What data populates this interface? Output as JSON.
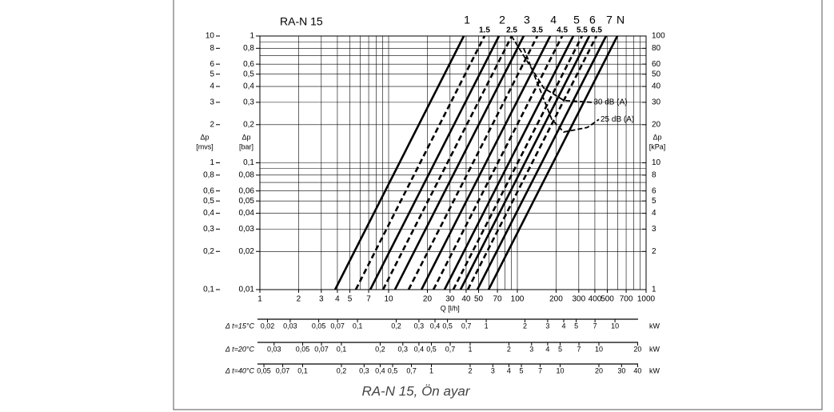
{
  "chart_data": {
    "type": "line",
    "title": "RA-N 15",
    "caption": "RA-N 15, Ön ayar",
    "x_label": "Q [l/h]",
    "x_log": true,
    "y_log": true,
    "grid": true,
    "xlim": [
      1,
      1000
    ],
    "xticks": [
      1,
      2,
      3,
      4,
      5,
      7,
      10,
      20,
      30,
      40,
      50,
      70,
      100,
      200,
      300,
      400,
      500,
      700,
      1000
    ],
    "xgrid": [
      1,
      2,
      3,
      4,
      5,
      6,
      7,
      8,
      9,
      10,
      20,
      30,
      40,
      50,
      60,
      70,
      80,
      90,
      100,
      200,
      300,
      400,
      500,
      600,
      700,
      800,
      900,
      1000
    ],
    "y_label": {
      "symbol": "Δp",
      "unit": "[bar]"
    },
    "ylim": [
      0.01,
      1
    ],
    "yticks": [
      1,
      {
        "value": 0.8,
        "label": "0,8"
      },
      {
        "value": 0.6,
        "label": "0,6"
      },
      {
        "value": 0.5,
        "label": "0,5"
      },
      {
        "value": 0.4,
        "label": "0,4"
      },
      {
        "value": 0.3,
        "label": "0,3"
      },
      {
        "value": 0.2,
        "label": "0,2"
      },
      {
        "value": 0.1,
        "label": "0,1"
      },
      {
        "value": 0.08,
        "label": "0,08"
      },
      {
        "value": 0.06,
        "label": "0,06"
      },
      {
        "value": 0.05,
        "label": "0,05"
      },
      {
        "value": 0.04,
        "label": "0,04"
      },
      {
        "value": 0.03,
        "label": "0,03"
      },
      {
        "value": 0.02,
        "label": "0,02"
      },
      {
        "value": 0.01,
        "label": "0,01"
      }
    ],
    "ygrid": [
      0.01,
      0.02,
      0.03,
      0.04,
      0.05,
      0.06,
      0.07,
      0.08,
      0.09,
      0.1,
      0.2,
      0.3,
      0.4,
      0.5,
      0.6,
      0.7,
      0.8,
      0.9,
      1
    ],
    "y2_label": {
      "symbol": "Δp",
      "unit": "[kPa]"
    },
    "y2lim": [
      1,
      100
    ],
    "y2ticks": [
      100,
      80,
      60,
      50,
      40,
      30,
      20,
      10,
      8,
      6,
      5,
      4,
      3,
      2,
      1
    ],
    "y3_label": {
      "symbol": "Δp",
      "unit": "[mvs]"
    },
    "y3lim": [
      0.1,
      10
    ],
    "y3ticks": [
      10,
      8,
      6,
      5,
      4,
      3,
      2,
      1,
      {
        "value": 0.8,
        "label": "0,8"
      },
      {
        "value": 0.6,
        "label": "0,6"
      },
      {
        "value": 0.5,
        "label": "0,5"
      },
      {
        "value": 0.4,
        "label": "0,4"
      },
      {
        "value": 0.3,
        "label": "0,3"
      },
      {
        "value": 0.2,
        "label": "0,2"
      },
      {
        "value": 0.1,
        "label": "0,1"
      }
    ],
    "series": [
      {
        "name": "1",
        "color": "#000000",
        "dashed": false,
        "x": [
          3.84,
          38.4
        ],
        "values": [
          0.01,
          1
        ]
      },
      {
        "name": "1.5",
        "color": "#000000",
        "dashed": true,
        "x": [
          5.56,
          55.6
        ],
        "values": [
          0.01,
          1
        ]
      },
      {
        "name": "2",
        "color": "#000000",
        "dashed": false,
        "x": [
          7.2,
          72
        ],
        "values": [
          0.01,
          1
        ]
      },
      {
        "name": "2.5",
        "color": "#000000",
        "dashed": true,
        "x": [
          9.05,
          90.5
        ],
        "values": [
          0.01,
          1
        ]
      },
      {
        "name": "3",
        "color": "#000000",
        "dashed": false,
        "x": [
          11.2,
          112
        ],
        "values": [
          0.01,
          1
        ]
      },
      {
        "name": "3.5",
        "color": "#000000",
        "dashed": true,
        "x": [
          14.3,
          143
        ],
        "values": [
          0.01,
          1
        ]
      },
      {
        "name": "4",
        "color": "#000000",
        "dashed": false,
        "x": [
          18,
          180
        ],
        "values": [
          0.01,
          1
        ]
      },
      {
        "name": "4.5",
        "color": "#000000",
        "dashed": true,
        "x": [
          22.3,
          223
        ],
        "values": [
          0.01,
          1
        ]
      },
      {
        "name": "5",
        "color": "#000000",
        "dashed": false,
        "x": [
          27.2,
          272
        ],
        "values": [
          0.01,
          1
        ]
      },
      {
        "name": "5.5",
        "color": "#000000",
        "dashed": true,
        "x": [
          31.8,
          318
        ],
        "values": [
          0.01,
          1
        ]
      },
      {
        "name": "6",
        "color": "#000000",
        "dashed": false,
        "x": [
          36.2,
          362
        ],
        "values": [
          0.01,
          1
        ]
      },
      {
        "name": "6.5",
        "color": "#000000",
        "dashed": true,
        "x": [
          41.2,
          412
        ],
        "values": [
          0.01,
          1
        ]
      },
      {
        "name": "7",
        "color": "#000000",
        "dashed": false,
        "x": [
          48.9,
          489
        ],
        "values": [
          0.01,
          1
        ]
      },
      {
        "name": "N",
        "color": "#000000",
        "dashed": false,
        "x": [
          59.8,
          598
        ],
        "values": [
          0.01,
          1
        ]
      }
    ],
    "noise_curves": [
      {
        "label": "30 dB (A)",
        "x": [
          90,
          160,
          230,
          380
        ],
        "values": [
          1,
          0.39,
          0.31,
          0.3
        ]
      },
      {
        "label": "25 dB (A)",
        "x": [
          112,
          185,
          229,
          350,
          430
        ],
        "values": [
          0.8,
          0.22,
          0.175,
          0.19,
          0.22
        ]
      }
    ],
    "power_scales": [
      {
        "label": "Δ t=15°C",
        "unit": "kW",
        "xlim": [
          0.01745,
          17.45
        ],
        "ticks": [
          {
            "value": 0.02,
            "label": "0,02"
          },
          {
            "value": 0.03,
            "label": "0,03"
          },
          {
            "value": 0.05,
            "label": "0,05"
          },
          {
            "value": 0.07,
            "label": "0,07"
          },
          {
            "value": 0.1,
            "label": "0,1"
          },
          {
            "value": 0.2,
            "label": "0,2"
          },
          {
            "value": 0.3,
            "label": "0,3"
          },
          {
            "value": 0.4,
            "label": "0,4"
          },
          {
            "value": 0.5,
            "label": "0,5"
          },
          {
            "value": 0.7,
            "label": "0,7"
          },
          1,
          2,
          3,
          4,
          5,
          7,
          10
        ]
      },
      {
        "label": "Δ t=20°C",
        "unit": "kW",
        "xlim": [
          0.02326,
          23.26
        ],
        "ticks": [
          {
            "value": 0.03,
            "label": "0,03"
          },
          {
            "value": 0.05,
            "label": "0,05"
          },
          {
            "value": 0.07,
            "label": "0,07"
          },
          {
            "value": 0.1,
            "label": "0,1"
          },
          {
            "value": 0.2,
            "label": "0,2"
          },
          {
            "value": 0.3,
            "label": "0,3"
          },
          {
            "value": 0.4,
            "label": "0,4"
          },
          {
            "value": 0.5,
            "label": "0,5"
          },
          {
            "value": 0.7,
            "label": "0,7"
          },
          1,
          2,
          3,
          4,
          5,
          7,
          10,
          20
        ]
      },
      {
        "label": "Δ t=40°C",
        "unit": "kW",
        "xlim": [
          0.04652,
          46.52
        ],
        "ticks": [
          {
            "value": 0.05,
            "label": "0,05"
          },
          {
            "value": 0.07,
            "label": "0,07"
          },
          {
            "value": 0.1,
            "label": "0,1"
          },
          {
            "value": 0.2,
            "label": "0,2"
          },
          {
            "value": 0.3,
            "label": "0,3"
          },
          {
            "value": 0.4,
            "label": "0,4"
          },
          {
            "value": 0.5,
            "label": "0,5"
          },
          {
            "value": 0.7,
            "label": "0,7"
          },
          1,
          2,
          3,
          4,
          5,
          7,
          10,
          20,
          30,
          40
        ]
      }
    ]
  }
}
